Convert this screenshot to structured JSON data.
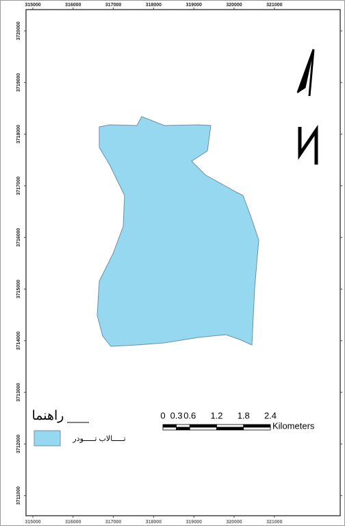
{
  "map": {
    "top_labels": [
      315000,
      316000,
      317000,
      318000,
      319000,
      320000,
      321000
    ],
    "bottom_labels": [
      315000,
      316000,
      317000,
      318000,
      319000,
      320000,
      321000
    ],
    "left_labels": [
      3720000,
      3719000,
      3718000,
      3717000,
      3716000,
      3715000,
      3714000,
      3713000,
      3712000,
      3711000
    ],
    "legend": {
      "title": "راهنما",
      "item": "تـــــالاب تـــــودر"
    },
    "scale": {
      "ticks": [
        0,
        0.3,
        0.6,
        1.2,
        1.8,
        2.4
      ],
      "units": "Kilometers"
    }
  }
}
